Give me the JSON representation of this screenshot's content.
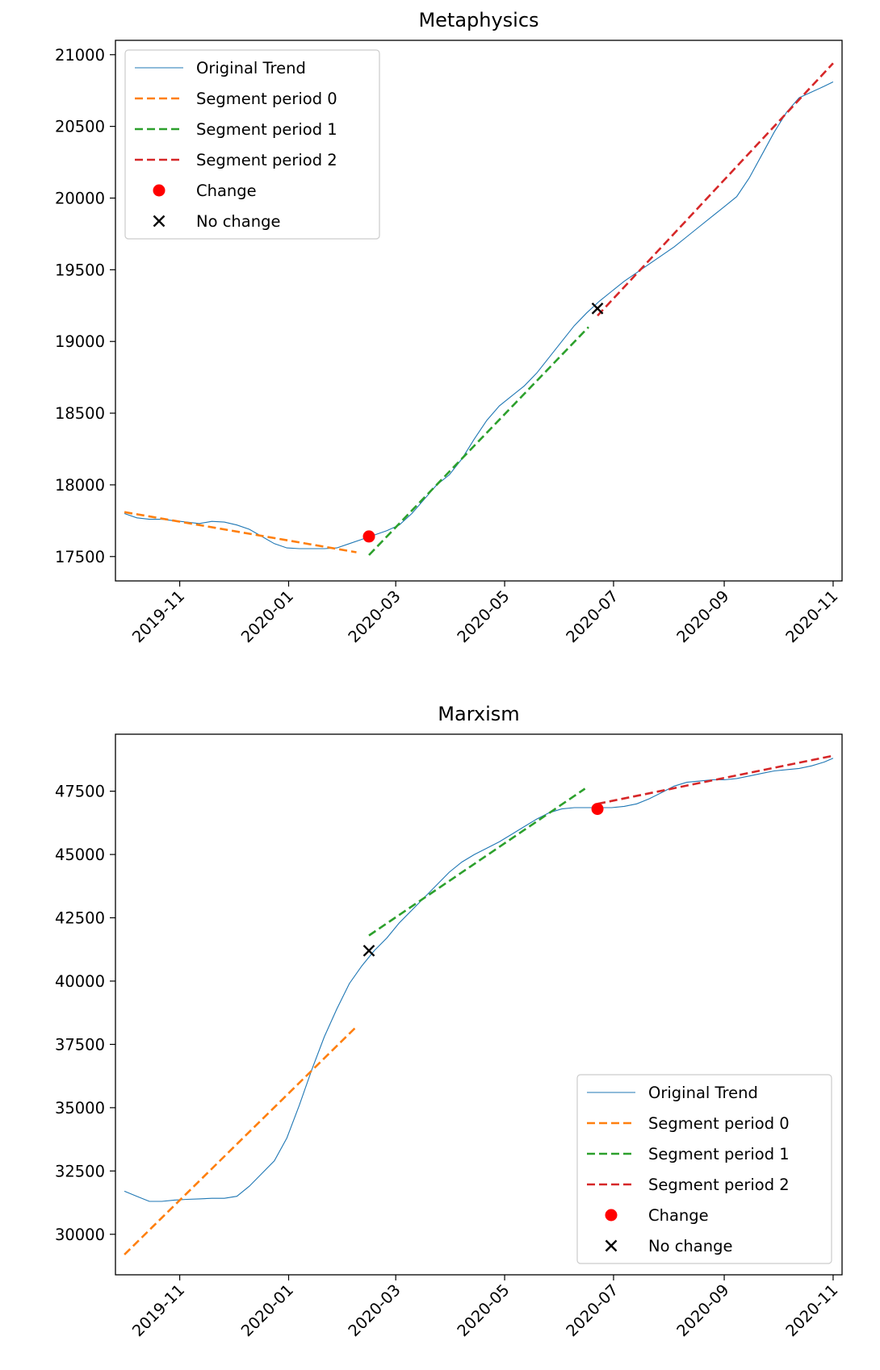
{
  "chart_data": [
    {
      "type": "line",
      "title": "Metaphysics",
      "xlabel": "",
      "ylabel": "",
      "x_ticks": [
        "2019-11",
        "2020-01",
        "2020-03",
        "2020-05",
        "2020-07",
        "2020-09",
        "2020-11"
      ],
      "y_ticks": [
        17500,
        18000,
        18500,
        19000,
        19500,
        20000,
        20500,
        21000
      ],
      "ylim": [
        17330,
        21100
      ],
      "xlim": [
        "2019-09-26",
        "2020-11-06"
      ],
      "legend": {
        "placement": "upper-left",
        "entries": [
          "Original Trend",
          "Segment period 0",
          "Segment period 1",
          "Segment period 2",
          "Change",
          "No change"
        ]
      },
      "series": [
        {
          "name": "Original Trend",
          "style": "line",
          "color": "#1f77b4",
          "points": [
            [
              "2019-10-01",
              17800
            ],
            [
              "2019-10-08",
              17770
            ],
            [
              "2019-10-15",
              17760
            ],
            [
              "2019-10-22",
              17760
            ],
            [
              "2019-10-29",
              17750
            ],
            [
              "2019-11-05",
              17740
            ],
            [
              "2019-11-12",
              17730
            ],
            [
              "2019-11-19",
              17745
            ],
            [
              "2019-11-26",
              17740
            ],
            [
              "2019-12-03",
              17720
            ],
            [
              "2019-12-10",
              17690
            ],
            [
              "2019-12-17",
              17640
            ],
            [
              "2019-12-24",
              17590
            ],
            [
              "2019-12-31",
              17560
            ],
            [
              "2020-01-07",
              17555
            ],
            [
              "2020-01-14",
              17555
            ],
            [
              "2020-01-21",
              17555
            ],
            [
              "2020-01-28",
              17560
            ],
            [
              "2020-02-04",
              17590
            ],
            [
              "2020-02-11",
              17620
            ],
            [
              "2020-02-18",
              17650
            ],
            [
              "2020-02-25",
              17680
            ],
            [
              "2020-03-03",
              17720
            ],
            [
              "2020-03-10",
              17800
            ],
            [
              "2020-03-17",
              17900
            ],
            [
              "2020-03-24",
              18000
            ],
            [
              "2020-03-31",
              18070
            ],
            [
              "2020-04-07",
              18180
            ],
            [
              "2020-04-14",
              18320
            ],
            [
              "2020-04-21",
              18450
            ],
            [
              "2020-04-28",
              18550
            ],
            [
              "2020-05-05",
              18620
            ],
            [
              "2020-05-12",
              18690
            ],
            [
              "2020-05-19",
              18780
            ],
            [
              "2020-05-26",
              18890
            ],
            [
              "2020-06-02",
              19000
            ],
            [
              "2020-06-09",
              19110
            ],
            [
              "2020-06-16",
              19200
            ],
            [
              "2020-06-23",
              19280
            ],
            [
              "2020-06-30",
              19350
            ],
            [
              "2020-07-07",
              19420
            ],
            [
              "2020-07-14",
              19480
            ],
            [
              "2020-07-21",
              19540
            ],
            [
              "2020-07-28",
              19600
            ],
            [
              "2020-08-04",
              19660
            ],
            [
              "2020-08-11",
              19730
            ],
            [
              "2020-08-18",
              19800
            ],
            [
              "2020-08-25",
              19870
            ],
            [
              "2020-09-01",
              19940
            ],
            [
              "2020-09-08",
              20010
            ],
            [
              "2020-09-15",
              20140
            ],
            [
              "2020-09-22",
              20300
            ],
            [
              "2020-09-29",
              20460
            ],
            [
              "2020-10-06",
              20600
            ],
            [
              "2020-10-13",
              20700
            ],
            [
              "2020-10-20",
              20740
            ],
            [
              "2020-10-27",
              20780
            ],
            [
              "2020-11-01",
              20810
            ]
          ]
        },
        {
          "name": "Segment period 0",
          "style": "dashed",
          "color": "#ff7f0e",
          "points": [
            [
              "2019-10-01",
              17810
            ],
            [
              "2020-02-08",
              17530
            ]
          ]
        },
        {
          "name": "Segment period 1",
          "style": "dashed",
          "color": "#2ca02c",
          "points": [
            [
              "2020-02-15",
              17510
            ],
            [
              "2020-06-17",
              19100
            ]
          ]
        },
        {
          "name": "Segment period 2",
          "style": "dashed",
          "color": "#d62728",
          "points": [
            [
              "2020-06-22",
              19180
            ],
            [
              "2020-11-01",
              20940
            ]
          ]
        },
        {
          "name": "Change",
          "style": "marker-circle",
          "color": "#ff0000",
          "points": [
            [
              "2020-02-15",
              17640
            ]
          ]
        },
        {
          "name": "No change",
          "style": "marker-x",
          "color": "#000000",
          "points": [
            [
              "2020-06-22",
              19230
            ]
          ]
        }
      ]
    },
    {
      "type": "line",
      "title": "Marxism",
      "xlabel": "",
      "ylabel": "",
      "x_ticks": [
        "2019-11",
        "2020-01",
        "2020-03",
        "2020-05",
        "2020-07",
        "2020-09",
        "2020-11"
      ],
      "y_ticks": [
        30000,
        32500,
        35000,
        37500,
        40000,
        42500,
        45000,
        47500
      ],
      "ylim": [
        28400,
        49750
      ],
      "xlim": [
        "2019-09-26",
        "2020-11-06"
      ],
      "legend": {
        "placement": "lower-right",
        "entries": [
          "Original Trend",
          "Segment period 0",
          "Segment period 1",
          "Segment period 2",
          "Change",
          "No change"
        ]
      },
      "series": [
        {
          "name": "Original Trend",
          "style": "line",
          "color": "#1f77b4",
          "points": [
            [
              "2019-10-01",
              31700
            ],
            [
              "2019-10-08",
              31500
            ],
            [
              "2019-10-15",
              31300
            ],
            [
              "2019-10-22",
              31300
            ],
            [
              "2019-10-29",
              31350
            ],
            [
              "2019-11-05",
              31380
            ],
            [
              "2019-11-12",
              31400
            ],
            [
              "2019-11-19",
              31420
            ],
            [
              "2019-11-26",
              31420
            ],
            [
              "2019-12-03",
              31500
            ],
            [
              "2019-12-10",
              31900
            ],
            [
              "2019-12-17",
              32400
            ],
            [
              "2019-12-24",
              32900
            ],
            [
              "2019-12-31",
              33800
            ],
            [
              "2020-01-07",
              35100
            ],
            [
              "2020-01-14",
              36500
            ],
            [
              "2020-01-21",
              37800
            ],
            [
              "2020-01-28",
              38900
            ],
            [
              "2020-02-04",
              39900
            ],
            [
              "2020-02-11",
              40600
            ],
            [
              "2020-02-18",
              41200
            ],
            [
              "2020-02-25",
              41700
            ],
            [
              "2020-03-03",
              42300
            ],
            [
              "2020-03-10",
              42800
            ],
            [
              "2020-03-17",
              43300
            ],
            [
              "2020-03-24",
              43800
            ],
            [
              "2020-03-31",
              44300
            ],
            [
              "2020-04-07",
              44700
            ],
            [
              "2020-04-14",
              45000
            ],
            [
              "2020-04-21",
              45250
            ],
            [
              "2020-04-28",
              45500
            ],
            [
              "2020-05-05",
              45800
            ],
            [
              "2020-05-12",
              46100
            ],
            [
              "2020-05-19",
              46400
            ],
            [
              "2020-05-26",
              46650
            ],
            [
              "2020-06-02",
              46800
            ],
            [
              "2020-06-09",
              46850
            ],
            [
              "2020-06-16",
              46850
            ],
            [
              "2020-06-23",
              46850
            ],
            [
              "2020-06-30",
              46850
            ],
            [
              "2020-07-07",
              46900
            ],
            [
              "2020-07-14",
              47000
            ],
            [
              "2020-07-21",
              47200
            ],
            [
              "2020-07-28",
              47450
            ],
            [
              "2020-08-04",
              47700
            ],
            [
              "2020-08-11",
              47850
            ],
            [
              "2020-08-18",
              47900
            ],
            [
              "2020-08-25",
              47950
            ],
            [
              "2020-09-01",
              47950
            ],
            [
              "2020-09-08",
              48000
            ],
            [
              "2020-09-15",
              48100
            ],
            [
              "2020-09-22",
              48200
            ],
            [
              "2020-09-29",
              48300
            ],
            [
              "2020-10-06",
              48350
            ],
            [
              "2020-10-13",
              48400
            ],
            [
              "2020-10-20",
              48500
            ],
            [
              "2020-10-27",
              48650
            ],
            [
              "2020-11-01",
              48800
            ]
          ]
        },
        {
          "name": "Segment period 0",
          "style": "dashed",
          "color": "#ff7f0e",
          "points": [
            [
              "2019-10-01",
              29200
            ],
            [
              "2020-02-08",
              38200
            ]
          ]
        },
        {
          "name": "Segment period 1",
          "style": "dashed",
          "color": "#2ca02c",
          "points": [
            [
              "2020-02-15",
              41800
            ],
            [
              "2020-06-15",
              47600
            ]
          ]
        },
        {
          "name": "Segment period 2",
          "style": "dashed",
          "color": "#d62728",
          "points": [
            [
              "2020-06-22",
              47000
            ],
            [
              "2020-11-01",
              48900
            ]
          ]
        },
        {
          "name": "Change",
          "style": "marker-circle",
          "color": "#ff0000",
          "points": [
            [
              "2020-06-22",
              46800
            ]
          ]
        },
        {
          "name": "No change",
          "style": "marker-x",
          "color": "#000000",
          "points": [
            [
              "2020-02-15",
              41200
            ]
          ]
        }
      ]
    }
  ]
}
